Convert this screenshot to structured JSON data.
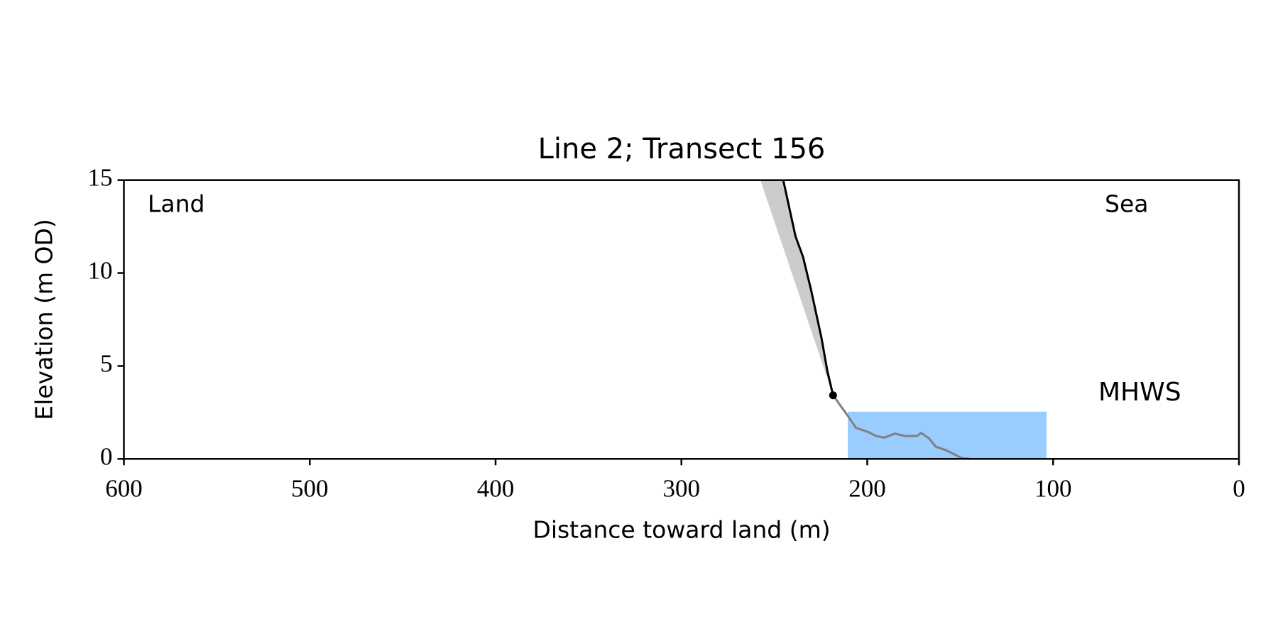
{
  "chart_data": {
    "type": "line",
    "title": "Line 2; Transect 156",
    "xlabel": "Distance toward land (m)",
    "ylabel": "Elevation (m OD)",
    "annotations": {
      "land": "Land",
      "sea": "Sea",
      "mhws": "MHWS"
    },
    "mhws": {
      "level": 2.54,
      "x": [
        210.5,
        103.5
      ],
      "color": "#99ccff",
      "label_color": "#6699cc"
    },
    "xlim": [
      600,
      0
    ],
    "ylim": [
      0,
      15
    ],
    "xticks": [
      600,
      500,
      400,
      300,
      200,
      100,
      0
    ],
    "yticks": [
      0,
      5,
      10,
      15
    ],
    "series": [
      {
        "kind": "area",
        "color": "#cccccc",
        "x": [
          257.5,
          245.2,
          238.6,
          234.6,
          230.3,
          224.6,
          221.5,
          218.4
        ],
        "values": [
          15,
          15,
          11.97,
          10.88,
          9.12,
          6.49,
          4.74,
          3.42
        ]
      },
      {
        "kind": "line",
        "color": "#808080",
        "x": [
          218.4,
          210.5,
          206.1,
          199.6,
          195.2,
          190.8,
          188.6,
          185.1,
          179.8,
          173.2,
          171.1,
          166.7,
          163.2,
          157.9,
          153.5,
          149.1,
          144.7
        ],
        "values": [
          3.42,
          2.32,
          1.67,
          1.45,
          1.23,
          1.14,
          1.23,
          1.36,
          1.23,
          1.23,
          1.4,
          1.1,
          0.66,
          0.48,
          0.26,
          0.04,
          0
        ]
      },
      {
        "kind": "line",
        "color": "#000000",
        "x": [
          245.2,
          238.6,
          234.6,
          230.3,
          224.6,
          221.5,
          218.4
        ],
        "values": [
          15,
          11.97,
          10.88,
          9.12,
          6.49,
          4.74,
          3.42
        ]
      },
      {
        "kind": "point",
        "color": "#000000",
        "x": [
          218.4
        ],
        "values": [
          3.42
        ]
      }
    ]
  }
}
